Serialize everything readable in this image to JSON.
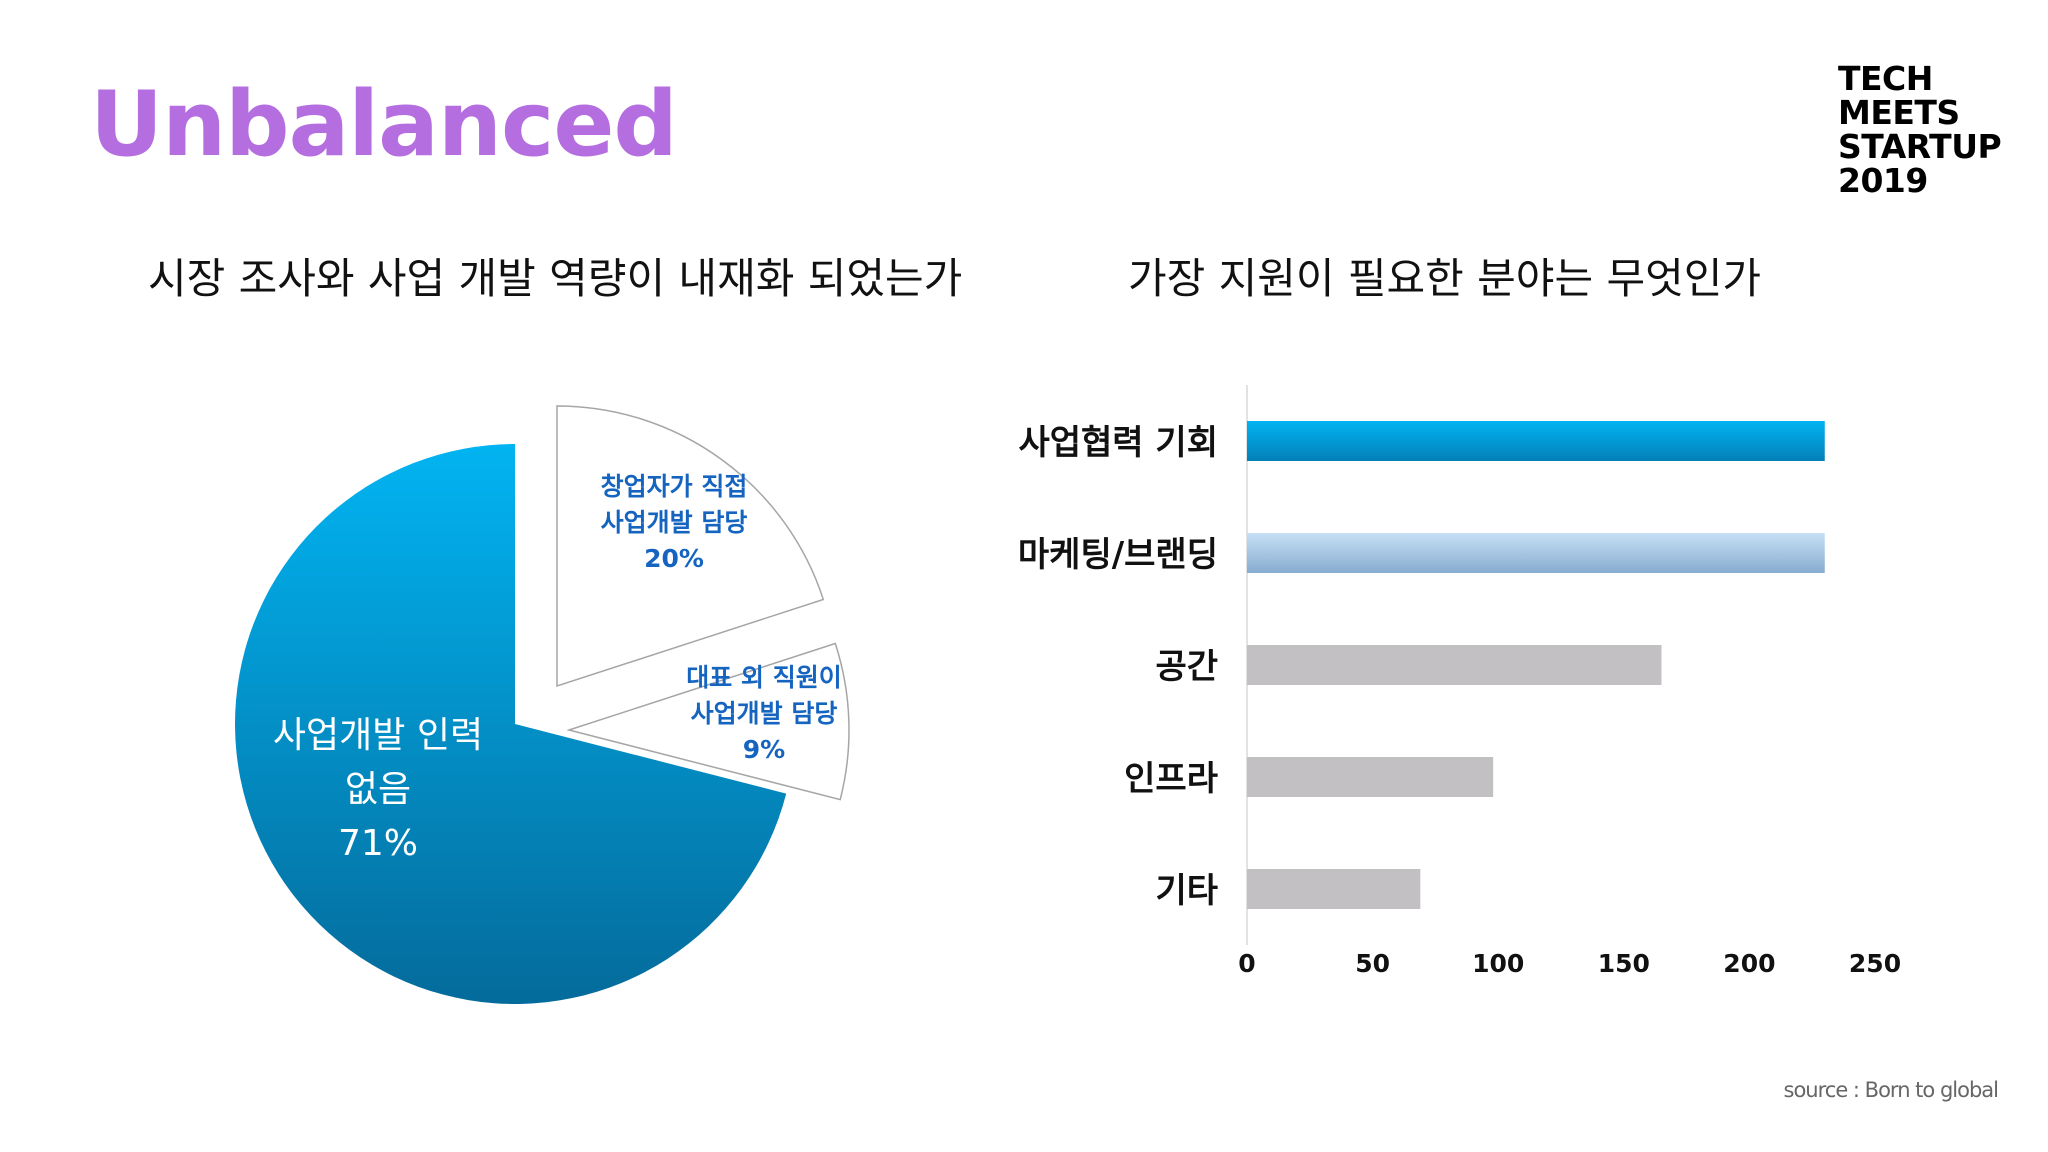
{
  "slide": {
    "title": "Unbalanced",
    "logo_lines": [
      "TECH",
      "MEETS",
      "STARTUP",
      "2019"
    ],
    "source": "source : Born to global"
  },
  "colors": {
    "title": "#b46ee0",
    "pie_main_top": "#02b4f2",
    "pie_main_bottom": "#046b9b",
    "pie_label_blue": "#1565c0",
    "bar_blue_top": "#02b4f2",
    "bar_blue_bottom": "#0380b8",
    "bar_lightblue_top": "#c6e0f5",
    "bar_lightblue_bottom": "#86acd0",
    "bar_gray": "#c2c0c3"
  },
  "chart_data": [
    {
      "type": "pie",
      "title": "시장 조사와 사업 개발 역량이 내재화 되었는가",
      "slices": [
        {
          "label_lines": [
            "사업개발 인력",
            "없음"
          ],
          "percent_label": "71%",
          "value": 71,
          "exploded": false
        },
        {
          "label_lines": [
            "창업자가 직접",
            "사업개발 담당"
          ],
          "percent_label": "20%",
          "value": 20,
          "exploded": true
        },
        {
          "label_lines": [
            "대표 외 직원이",
            "사업개발 담당"
          ],
          "percent_label": "9%",
          "value": 9,
          "exploded": true
        }
      ]
    },
    {
      "type": "bar",
      "orientation": "horizontal",
      "title": "가장 지원이 필요한 분야는 무엇인가",
      "categories": [
        "사업협력 기회",
        "마케팅/브랜딩",
        "공간",
        "인프라",
        "기타"
      ],
      "values": [
        230,
        230,
        165,
        98,
        69
      ],
      "bar_styles": [
        "blue",
        "lightblue",
        "gray",
        "gray",
        "gray"
      ],
      "xlim": [
        0,
        250
      ],
      "xticks": [
        "0",
        "50",
        "100",
        "150",
        "200",
        "250"
      ],
      "grid": false
    }
  ]
}
